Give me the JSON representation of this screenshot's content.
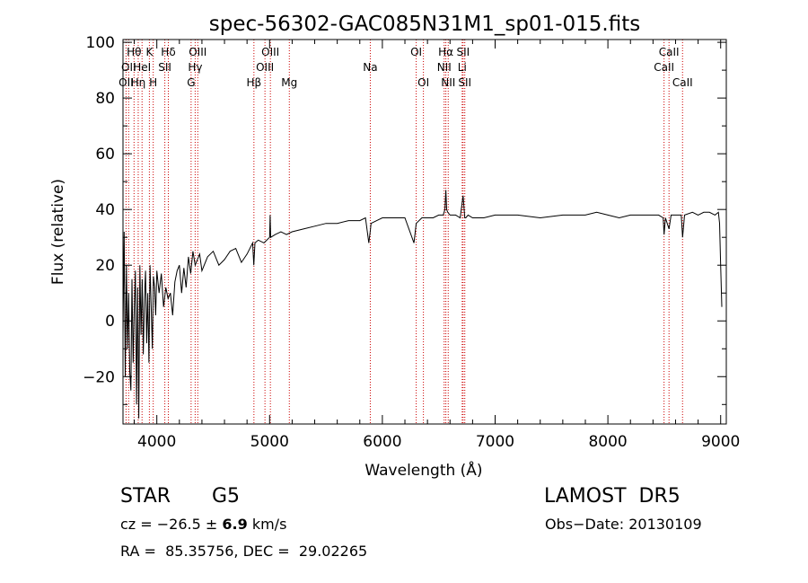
{
  "chart_data": {
    "type": "line",
    "title": "spec-56302-GAC085N31M1_sp01-015.fits",
    "xlabel": "Wavelength (Å)",
    "ylabel": "Flux (relative)",
    "xlim": [
      3700,
      9050
    ],
    "ylim": [
      -37,
      101
    ],
    "xticks": [
      4000,
      5000,
      6000,
      7000,
      8000,
      9000
    ],
    "xtick_labels": [
      "4000",
      "5000",
      "6000",
      "7000",
      "8000",
      "9000"
    ],
    "yticks": [
      -20,
      0,
      20,
      40,
      60,
      80,
      100
    ],
    "ytick_labels": [
      "−20",
      "0",
      "20",
      "40",
      "60",
      "80",
      "100"
    ],
    "grid": false,
    "series": [
      {
        "color": "#000000",
        "x": [
          3700,
          3710,
          3720,
          3730,
          3740,
          3750,
          3760,
          3770,
          3780,
          3790,
          3800,
          3810,
          3820,
          3830,
          3840,
          3850,
          3860,
          3870,
          3880,
          3890,
          3900,
          3910,
          3920,
          3930,
          3940,
          3950,
          3960,
          3970,
          3980,
          3990,
          4000,
          4020,
          4040,
          4060,
          4080,
          4100,
          4120,
          4140,
          4160,
          4180,
          4200,
          4220,
          4240,
          4260,
          4280,
          4300,
          4320,
          4340,
          4360,
          4380,
          4400,
          4450,
          4500,
          4550,
          4600,
          4650,
          4700,
          4750,
          4800,
          4850,
          4860,
          4870,
          4900,
          4950,
          5000,
          5005,
          5010,
          5050,
          5100,
          5150,
          5200,
          5300,
          5400,
          5500,
          5600,
          5700,
          5800,
          5850,
          5880,
          5895,
          5900,
          5950,
          6000,
          6100,
          6200,
          6280,
          6300,
          6350,
          6400,
          6450,
          6500,
          6540,
          6555,
          6563,
          6570,
          6580,
          6600,
          6650,
          6690,
          6716,
          6725,
          6731,
          6740,
          6760,
          6800,
          6900,
          7000,
          7200,
          7400,
          7600,
          7800,
          7900,
          8000,
          8100,
          8200,
          8300,
          8400,
          8450,
          8490,
          8498,
          8510,
          8542,
          8560,
          8600,
          8650,
          8662,
          8680,
          8750,
          8800,
          8850,
          8900,
          8950,
          8980,
          8990,
          9000,
          9010
        ],
        "y": [
          -5,
          32,
          -20,
          20,
          -10,
          10,
          -18,
          -25,
          15,
          -15,
          5,
          18,
          -30,
          12,
          -35,
          20,
          -5,
          15,
          -12,
          8,
          18,
          -8,
          10,
          -15,
          20,
          5,
          -10,
          16,
          12,
          2,
          18,
          10,
          17,
          5,
          12,
          8,
          10,
          2,
          14,
          18,
          20,
          10,
          19,
          12,
          23,
          17,
          25,
          20,
          22,
          24,
          18,
          23,
          25,
          20,
          22,
          25,
          26,
          21,
          24,
          28,
          20,
          28,
          29,
          28,
          30,
          38,
          30,
          31,
          32,
          31,
          32,
          33,
          34,
          35,
          35,
          36,
          36,
          37,
          28,
          33,
          35,
          36,
          37,
          37,
          37,
          28,
          35,
          37,
          37,
          37,
          38,
          38,
          40,
          47,
          40,
          39,
          38,
          38,
          37,
          45,
          40,
          37,
          37,
          38,
          37,
          37,
          38,
          38,
          37,
          38,
          38,
          39,
          38,
          37,
          38,
          38,
          38,
          38,
          37,
          31,
          37,
          33,
          38,
          38,
          38,
          30,
          38,
          39,
          38,
          39,
          39,
          38,
          39,
          35,
          20,
          5
        ],
        "values": [
          -5,
          32,
          -20,
          20,
          -10,
          10,
          -18,
          -25,
          15,
          -15,
          5,
          18,
          -30,
          12,
          -35,
          20,
          -5,
          15,
          -12,
          8,
          18,
          -8,
          10,
          -15,
          20,
          5,
          -10,
          16,
          12,
          2,
          18,
          10,
          17,
          5,
          12,
          8,
          10,
          2,
          14,
          18,
          20,
          10,
          19,
          12,
          23,
          17,
          25,
          20,
          22,
          24,
          18,
          23,
          25,
          20,
          22,
          25,
          26,
          21,
          24,
          28,
          20,
          28,
          29,
          28,
          30,
          38,
          30,
          31,
          32,
          31,
          32,
          33,
          34,
          35,
          35,
          36,
          36,
          37,
          28,
          33,
          35,
          36,
          37,
          37,
          37,
          28,
          35,
          37,
          37,
          37,
          38,
          38,
          40,
          47,
          40,
          39,
          38,
          38,
          37,
          45,
          40,
          37,
          37,
          38,
          37,
          37,
          38,
          38,
          37,
          38,
          38,
          39,
          38,
          37,
          38,
          38,
          38,
          38,
          37,
          31,
          37,
          33,
          38,
          38,
          38,
          30,
          38,
          39,
          38,
          39,
          39,
          38,
          39,
          35,
          20,
          5
        ]
      }
    ],
    "line_color": "#cc0000",
    "lines": [
      {
        "wave": 3727,
        "labels": [
          [
            "OII",
            3
          ]
        ]
      },
      {
        "wave": 3750,
        "labels": [
          [
            "OII",
            2
          ]
        ]
      },
      {
        "wave": 3798,
        "labels": [
          [
            "Hθ",
            1
          ]
        ]
      },
      {
        "wave": 3835,
        "labels": [
          [
            "Hη",
            3
          ]
        ]
      },
      {
        "wave": 3869,
        "labels": [
          [
            "HeI",
            2
          ]
        ]
      },
      {
        "wave": 3934,
        "labels": [
          [
            "K",
            1
          ]
        ]
      },
      {
        "wave": 3968,
        "labels": [
          [
            "H",
            3
          ]
        ]
      },
      {
        "wave": 4071,
        "labels": [
          [
            "SII",
            2
          ]
        ]
      },
      {
        "wave": 4102,
        "labels": [
          [
            "Hδ",
            1
          ]
        ]
      },
      {
        "wave": 4304,
        "labels": [
          [
            "G",
            3
          ]
        ]
      },
      {
        "wave": 4340,
        "labels": [
          [
            "Hγ",
            2
          ]
        ]
      },
      {
        "wave": 4363,
        "labels": [
          [
            "OIII",
            1
          ]
        ]
      },
      {
        "wave": 4861,
        "labels": [
          [
            "Hβ",
            3
          ]
        ]
      },
      {
        "wave": 4959,
        "labels": [
          [
            "OIII",
            2
          ]
        ]
      },
      {
        "wave": 5007,
        "labels": [
          [
            "OIII",
            1
          ]
        ]
      },
      {
        "wave": 5175,
        "labels": [
          [
            "Mg",
            3
          ]
        ]
      },
      {
        "wave": 5893,
        "labels": [
          [
            "Na",
            2
          ]
        ]
      },
      {
        "wave": 6300,
        "labels": [
          [
            "OI",
            1
          ]
        ]
      },
      {
        "wave": 6364,
        "labels": [
          [
            "OI",
            3
          ]
        ]
      },
      {
        "wave": 6548,
        "labels": [
          [
            "NII",
            2
          ]
        ]
      },
      {
        "wave": 6563,
        "labels": [
          [
            "Hα",
            1
          ]
        ]
      },
      {
        "wave": 6584,
        "labels": [
          [
            "NII",
            3
          ]
        ]
      },
      {
        "wave": 6708,
        "labels": [
          [
            "Li",
            2
          ]
        ]
      },
      {
        "wave": 6716,
        "labels": [
          [
            "SII",
            1
          ]
        ]
      },
      {
        "wave": 6731,
        "labels": [
          [
            "SII",
            3
          ]
        ]
      },
      {
        "wave": 8498,
        "labels": [
          [
            "CaII",
            2
          ]
        ]
      },
      {
        "wave": 8542,
        "labels": [
          [
            "CaII",
            1
          ]
        ]
      },
      {
        "wave": 8662,
        "labels": [
          [
            "CaII",
            3
          ]
        ]
      }
    ]
  },
  "info": {
    "object_class": "STAR",
    "subclass": "G5",
    "survey": "LAMOST  DR5",
    "cz_prefix": "cz = −26.5 ± ",
    "cz_error": "6.9",
    "cz_unit": " km/s",
    "obs_date": "Obs−Date: 20130109",
    "coords": "RA =  85.35756, DEC =  29.02265"
  }
}
